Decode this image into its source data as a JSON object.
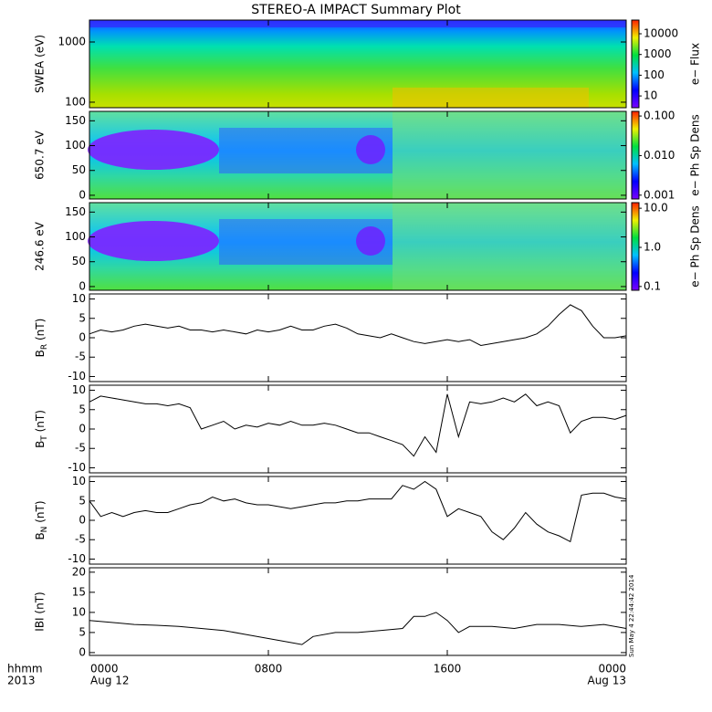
{
  "title": "STEREO-A IMPACT Summary Plot",
  "timestamp": "Sun May  4 22:44:42 2014",
  "chart_data": [
    {
      "type": "spectrogram",
      "ylabel": "SWEA (eV)",
      "log_y": true,
      "ylim": [
        81,
        2310
      ],
      "yticks": [
        100,
        1000
      ],
      "colorbar_label": "e− Flux",
      "colorbar_log": true,
      "clim": [
        2.7,
        45800
      ],
      "cticks": [
        10,
        100,
        1000,
        10000
      ]
    },
    {
      "type": "spectrogram",
      "ylabel": "650.7 eV",
      "log_y": false,
      "ylim": [
        -7.5,
        169
      ],
      "yticks": [
        0,
        50,
        100,
        150
      ],
      "colorbar_label": "e− Ph Sp Dens",
      "colorbar_log": true,
      "clim": [
        0.0008,
        0.131
      ],
      "cticks": [
        0.001,
        {
          "value": 0.01,
          "label": "0.010"
        },
        {
          "value": 0.1,
          "label": "0.100"
        }
      ]
    },
    {
      "type": "spectrogram",
      "ylabel": "246.6 eV",
      "log_y": false,
      "ylim": [
        -7.5,
        169
      ],
      "yticks": [
        0,
        50,
        100,
        150
      ],
      "colorbar_label": "e− Ph Sp Dens",
      "colorbar_log": true,
      "clim": [
        0.08,
        13.9
      ],
      "cticks": [
        0.1,
        {
          "value": 1,
          "label": "1.0"
        },
        {
          "value": 10,
          "label": "10.0"
        }
      ]
    },
    {
      "type": "line",
      "ylabel": [
        "B",
        "R",
        " (nT)"
      ],
      "ylim": [
        -11.3,
        11.3
      ],
      "yticks": [
        -10,
        -5,
        0,
        5,
        10
      ],
      "color": "#000000",
      "x": [
        0,
        0.5,
        1,
        1.5,
        2,
        2.5,
        3,
        3.5,
        4,
        4.5,
        5,
        5.5,
        6,
        6.5,
        7,
        7.5,
        8,
        8.5,
        9,
        9.5,
        10,
        10.5,
        11,
        11.5,
        12,
        12.5,
        13,
        13.5,
        14,
        14.5,
        15,
        15.5,
        16,
        16.5,
        17,
        17.5,
        18,
        18.5,
        19,
        19.5,
        20,
        20.5,
        21,
        21.5,
        22,
        22.5,
        23,
        23.5,
        24
      ],
      "values": [
        1,
        2,
        1.5,
        2,
        3,
        3.5,
        3,
        2.5,
        3,
        2,
        2,
        1.5,
        2,
        1.5,
        1,
        2,
        1.5,
        2,
        3,
        2,
        2,
        3,
        3.5,
        2.5,
        1,
        0.5,
        0,
        1,
        0,
        -1,
        -1.5,
        -1,
        -0.5,
        -1,
        -0.5,
        -2,
        -1.5,
        -1,
        -0.5,
        0,
        1,
        3,
        6,
        8.5,
        7,
        3,
        0,
        0,
        0.5
      ]
    },
    {
      "type": "line",
      "ylabel": [
        "B",
        "T",
        " (nT)"
      ],
      "ylim": [
        -11.3,
        11.3
      ],
      "yticks": [
        -10,
        -5,
        0,
        5,
        10
      ],
      "color": "#000000",
      "x": [
        0,
        0.5,
        1,
        1.5,
        2,
        2.5,
        3,
        3.5,
        4,
        4.5,
        5,
        5.5,
        6,
        6.5,
        7,
        7.5,
        8,
        8.5,
        9,
        9.5,
        10,
        10.5,
        11,
        11.5,
        12,
        12.5,
        13,
        13.5,
        14,
        14.5,
        15,
        15.5,
        16,
        16.5,
        17,
        17.5,
        18,
        18.5,
        19,
        19.5,
        20,
        20.5,
        21,
        21.5,
        22,
        22.5,
        23,
        23.5,
        24
      ],
      "values": [
        7,
        8.5,
        8,
        7.5,
        7,
        6.5,
        6.5,
        6,
        6.5,
        5.5,
        0,
        1,
        2,
        0,
        1,
        0.5,
        1.5,
        1,
        2,
        1,
        1,
        1.5,
        1,
        0,
        -1,
        -1,
        -2,
        -3,
        -4,
        -7,
        -2,
        -6,
        9,
        -2,
        7,
        6.5,
        7,
        8,
        7,
        9,
        6,
        7,
        6,
        -1,
        2,
        3,
        3,
        2.5,
        3.5
      ]
    },
    {
      "type": "line",
      "ylabel": [
        "B",
        "N",
        " (nT)"
      ],
      "ylim": [
        -11.3,
        11.3
      ],
      "yticks": [
        -10,
        -5,
        0,
        5,
        10
      ],
      "color": "#000000",
      "x": [
        0,
        0.5,
        1,
        1.5,
        2,
        2.5,
        3,
        3.5,
        4,
        4.5,
        5,
        5.5,
        6,
        6.5,
        7,
        7.5,
        8,
        8.5,
        9,
        9.5,
        10,
        10.5,
        11,
        11.5,
        12,
        12.5,
        13,
        13.5,
        14,
        14.5,
        15,
        15.5,
        16,
        16.5,
        17,
        17.5,
        18,
        18.5,
        19,
        19.5,
        20,
        20.5,
        21,
        21.5,
        22,
        22.5,
        23,
        23.5,
        24
      ],
      "values": [
        5,
        1,
        2,
        1,
        2,
        2.5,
        2,
        2,
        3,
        4,
        4.5,
        6,
        5,
        5.5,
        4.5,
        4,
        4,
        3.5,
        3,
        3.5,
        4,
        4.5,
        4.5,
        5,
        5,
        5.5,
        5.5,
        5.5,
        9,
        8,
        10,
        8,
        1,
        3,
        2,
        1,
        -3,
        -5,
        -2,
        2,
        -1,
        -3,
        -4,
        -5.5,
        6.5,
        7,
        7,
        6,
        5.5
      ]
    },
    {
      "type": "line",
      "ylabel": "IBI (nT)",
      "ylim": [
        -0.7,
        21.1
      ],
      "yticks": [
        0,
        5,
        10,
        15,
        20
      ],
      "color": "#000000",
      "x": [
        0,
        1,
        2,
        3,
        4,
        5,
        6,
        7,
        8,
        9,
        9.5,
        10,
        11,
        12,
        13,
        14,
        14.5,
        15,
        15.5,
        16,
        16.5,
        17,
        18,
        19,
        20,
        21,
        22,
        23,
        24
      ],
      "values": [
        8,
        7.5,
        7,
        6.8,
        6.5,
        6,
        5.5,
        4.5,
        3.5,
        2.5,
        2,
        4,
        5,
        5,
        5.5,
        6,
        9,
        9,
        10,
        8,
        5,
        6.5,
        6.5,
        6,
        7,
        7,
        6.5,
        7,
        6
      ],
      "xlim": [
        0,
        24
      ],
      "xticks": [
        {
          "value": 0,
          "label": "0000"
        },
        {
          "value": 8,
          "label": "0800"
        },
        {
          "value": 16,
          "label": "1600"
        },
        {
          "value": 24,
          "label": "0000"
        }
      ],
      "xtick_sublabels": [
        "Aug 12",
        null,
        null,
        "Aug 13"
      ],
      "x_axis_labels": [
        "hhmm",
        "2013"
      ]
    }
  ]
}
